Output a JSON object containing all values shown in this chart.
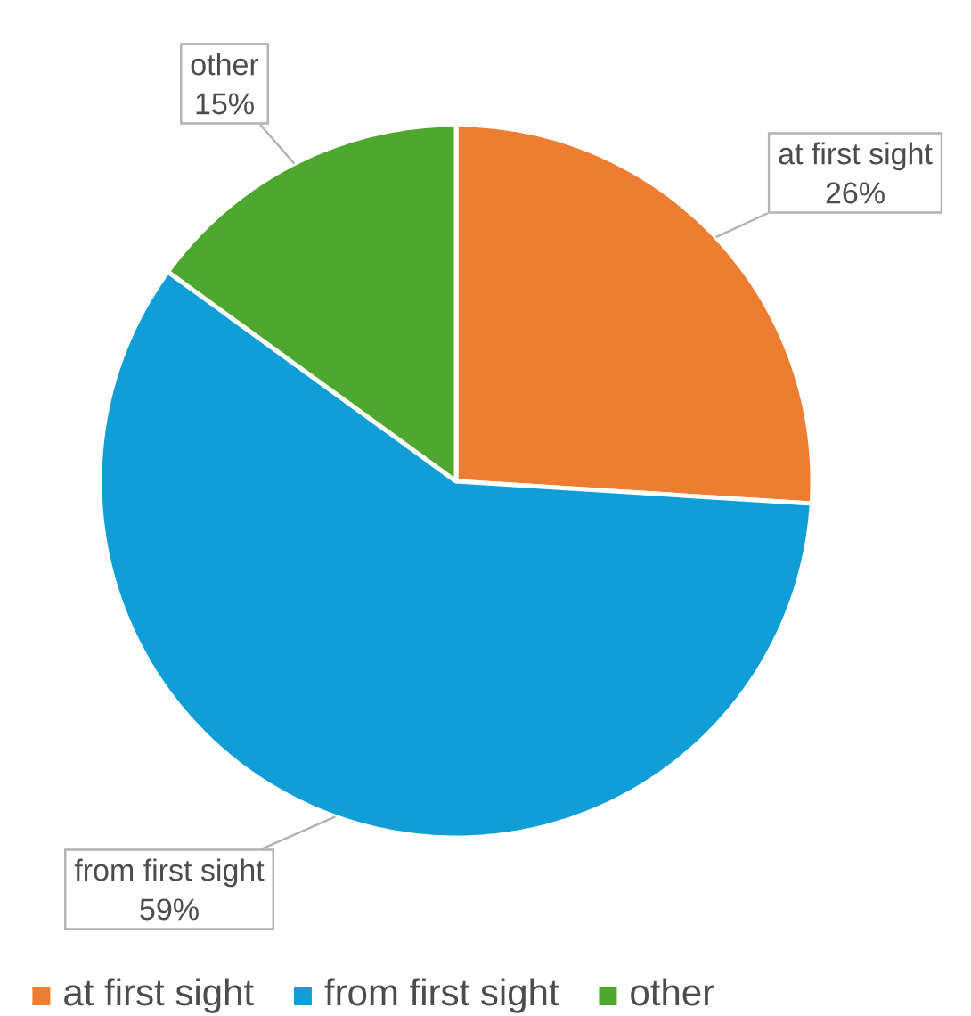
{
  "chart_data": {
    "type": "pie",
    "categories": [
      "at first sight",
      "from first sight",
      "other"
    ],
    "values": [
      26,
      59,
      15
    ],
    "value_labels": [
      "26%",
      "59%",
      "15%"
    ],
    "colors": [
      "#ED7D31",
      "#0F9ED5",
      "#4EA72E"
    ],
    "legend": "bottom"
  }
}
